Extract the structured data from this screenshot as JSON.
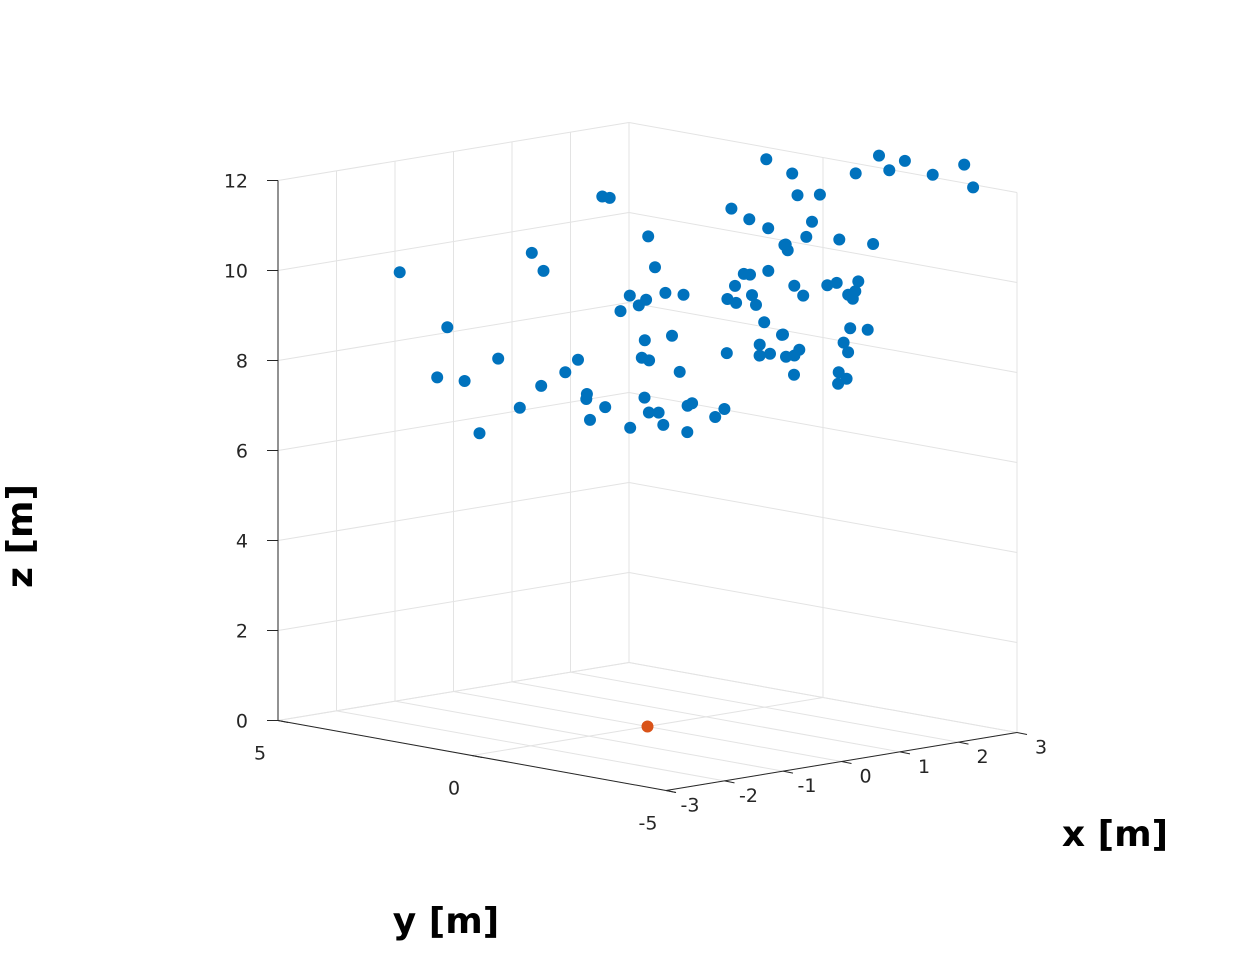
{
  "chart_data": {
    "type": "scatter",
    "title": "",
    "xlabel": "x [m]",
    "ylabel": "y [m]",
    "zlabel": "z [m]",
    "xlim": [
      -3,
      3
    ],
    "ylim": [
      -5,
      5
    ],
    "zlim": [
      0,
      12
    ],
    "xticks": [
      "-3",
      "-2",
      "-1",
      "0",
      "1",
      "2",
      "3"
    ],
    "yticks": [
      "5",
      "0",
      "-5"
    ],
    "zticks": [
      "0",
      "2",
      "4",
      "6",
      "8",
      "10",
      "12"
    ],
    "grid": true,
    "colors": {
      "points": "#0072BD",
      "origin": "#D95319"
    },
    "series": [
      {
        "marker": "point",
        "points": [
          [
            -2.89,
            2.03,
            10.4
          ],
          [
            -2.07,
            2.04,
            9.0
          ],
          [
            -2.64,
            1.44,
            8.1
          ],
          [
            -2.35,
            1.17,
            8.0
          ],
          [
            -1.42,
            0.84,
            10.7
          ],
          [
            -1.32,
            0.69,
            10.3
          ],
          [
            -1.83,
            1.09,
            8.4
          ],
          [
            -1.62,
            0.85,
            7.3
          ],
          [
            -1.24,
            0.87,
            7.7
          ],
          [
            -1.91,
            1.45,
            6.7
          ],
          [
            -0.01,
            1.15,
            11.6
          ],
          [
            -0.01,
            0.96,
            11.6
          ],
          [
            0.43,
            0.63,
            10.7
          ],
          [
            -1.02,
            0.58,
            8.0
          ],
          [
            -0.95,
            0.36,
            8.3
          ],
          [
            -0.79,
            0.37,
            7.5
          ],
          [
            -0.82,
            0.34,
            7.4
          ],
          [
            -0.93,
            0.08,
            7.0
          ],
          [
            -0.83,
            -0.16,
            7.3
          ],
          [
            -0.74,
            -0.67,
            6.9
          ],
          [
            -0.48,
            -0.76,
            7.2
          ],
          [
            -0.3,
            -0.86,
            6.9
          ],
          [
            0.3,
            0.26,
            10.1
          ],
          [
            -0.17,
            0.44,
            9.2
          ],
          [
            0.05,
            0.3,
            9.3
          ],
          [
            -0.21,
            0.14,
            9.6
          ],
          [
            -0.05,
            -0.04,
            9.5
          ],
          [
            0.24,
            -0.1,
            9.6
          ],
          [
            -0.06,
            -0.02,
            8.6
          ],
          [
            0.31,
            -0.46,
            9.6
          ],
          [
            0.18,
            -0.36,
            8.7
          ],
          [
            -0.29,
            -0.29,
            8.3
          ],
          [
            -0.35,
            -0.57,
            8.3
          ],
          [
            0.02,
            -0.8,
            8.0
          ],
          [
            -0.45,
            -0.6,
            7.5
          ],
          [
            -0.4,
            -0.89,
            7.2
          ],
          [
            -0.25,
            -1.41,
            7.4
          ],
          [
            -0.08,
            -1.27,
            7.4
          ],
          [
            -0.44,
            -1.69,
            6.9
          ],
          [
            0.11,
            -1.58,
            7.1
          ],
          [
            0.48,
            -1.32,
            8.4
          ],
          [
            0.14,
            -1.77,
            7.3
          ],
          [
            1.52,
            -0.77,
            12.4
          ],
          [
            1.46,
            -0.91,
            10.9
          ],
          [
            0.99,
            -0.67,
            11.4
          ],
          [
            1.07,
            -1.01,
            11.2
          ],
          [
            1.71,
            -1.15,
            12.1
          ],
          [
            1.48,
            -1.33,
            10.6
          ],
          [
            1.35,
            -1.83,
            11.8
          ],
          [
            0.54,
            -1.44,
            9.9
          ],
          [
            0.49,
            -1.32,
            9.6
          ],
          [
            0.6,
            -1.38,
            9.5
          ],
          [
            0.9,
            -1.44,
            9.4
          ],
          [
            1.0,
            -1.5,
            9.0
          ],
          [
            0.75,
            -1.76,
            8.6
          ],
          [
            0.65,
            -1.91,
            8.4
          ],
          [
            1.13,
            -1.41,
            10.1
          ],
          [
            1.58,
            -2.06,
            11.8
          ],
          [
            1.21,
            -1.79,
            10.6
          ],
          [
            1.0,
            -2.02,
            10.8
          ],
          [
            1.28,
            -2.31,
            11.3
          ],
          [
            1.15,
            -2.36,
            11.0
          ],
          [
            1.76,
            -2.29,
            10.8
          ],
          [
            1.07,
            -2.17,
            9.9
          ],
          [
            1.11,
            -2.34,
            9.7
          ],
          [
            0.79,
            -2.3,
            8.9
          ],
          [
            0.85,
            -2.63,
            8.6
          ],
          [
            0.74,
            -2.67,
            8.5
          ],
          [
            0.61,
            -2.65,
            8.5
          ],
          [
            0.39,
            -2.57,
            8.6
          ],
          [
            0.76,
            -2.32,
            8.9
          ],
          [
            0.46,
            -2.0,
            9.8
          ],
          [
            0.32,
            -2.0,
            10.3
          ],
          [
            0.34,
            -2.13,
            10.3
          ],
          [
            2.06,
            -2.26,
            12.2
          ],
          [
            2.26,
            -2.56,
            12.6
          ],
          [
            2.29,
            -2.78,
            12.3
          ],
          [
            2.45,
            -2.94,
            12.5
          ],
          [
            2.68,
            -3.31,
            12.2
          ],
          [
            3.02,
            -3.61,
            12.4
          ],
          [
            2.86,
            -4.08,
            12.0
          ],
          [
            1.84,
            -3.04,
            10.8
          ],
          [
            1.64,
            -2.96,
            10.0
          ],
          [
            1.4,
            -3.18,
            9.7
          ],
          [
            1.35,
            -3.32,
            9.9
          ],
          [
            1.25,
            -3.34,
            9.1
          ],
          [
            1.33,
            -3.67,
            9.1
          ],
          [
            1.16,
            -3.42,
            8.6
          ],
          [
            1.15,
            -3.32,
            8.8
          ],
          [
            0.98,
            -3.45,
            8.2
          ],
          [
            0.95,
            -3.7,
            8.1
          ],
          [
            0.85,
            -3.63,
            8.0
          ],
          [
            0.9,
            -2.42,
            8.0
          ],
          [
            1.78,
            -2.49,
            9.6
          ],
          [
            1.37,
            -2.81,
            10.0
          ],
          [
            1.17,
            -2.87,
            10.0
          ]
        ]
      },
      {
        "marker": "point",
        "points": [
          [
            0,
            0,
            0
          ]
        ]
      }
    ]
  }
}
